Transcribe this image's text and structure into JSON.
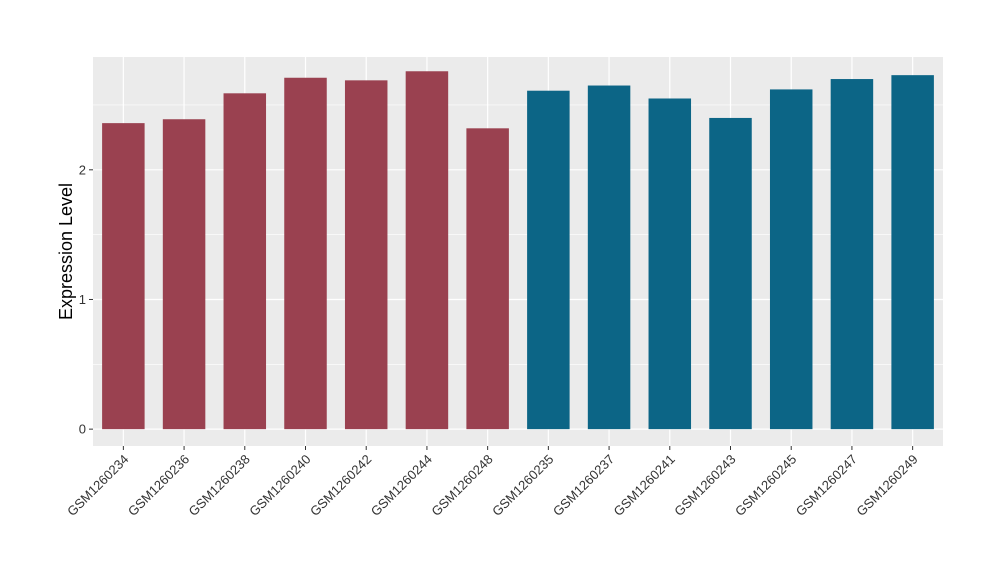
{
  "chart_data": {
    "type": "bar",
    "title": "",
    "xlabel": "",
    "ylabel": "Expression Level",
    "ylim": [
      -0.13,
      2.87
    ],
    "yticks": [
      0,
      1,
      2
    ],
    "grid": true,
    "legend": "none",
    "categories": [
      "GSM1260234",
      "GSM1260236",
      "GSM1260238",
      "GSM1260240",
      "GSM1260242",
      "GSM1260244",
      "GSM1260248",
      "GSM1260235",
      "GSM1260237",
      "GSM1260241",
      "GSM1260243",
      "GSM1260245",
      "GSM1260247",
      "GSM1260249"
    ],
    "values": [
      2.36,
      2.39,
      2.59,
      2.71,
      2.69,
      2.76,
      2.32,
      2.61,
      2.65,
      2.55,
      2.4,
      2.62,
      2.7,
      2.73
    ],
    "bar_colors": [
      "#9a4150",
      "#9a4150",
      "#9a4150",
      "#9a4150",
      "#9a4150",
      "#9a4150",
      "#9a4150",
      "#0c6586",
      "#0c6586",
      "#0c6586",
      "#0c6586",
      "#0c6586",
      "#0c6586",
      "#0c6586"
    ],
    "panel_background": "#ebebeb",
    "gridline_color": "#ffffff"
  }
}
